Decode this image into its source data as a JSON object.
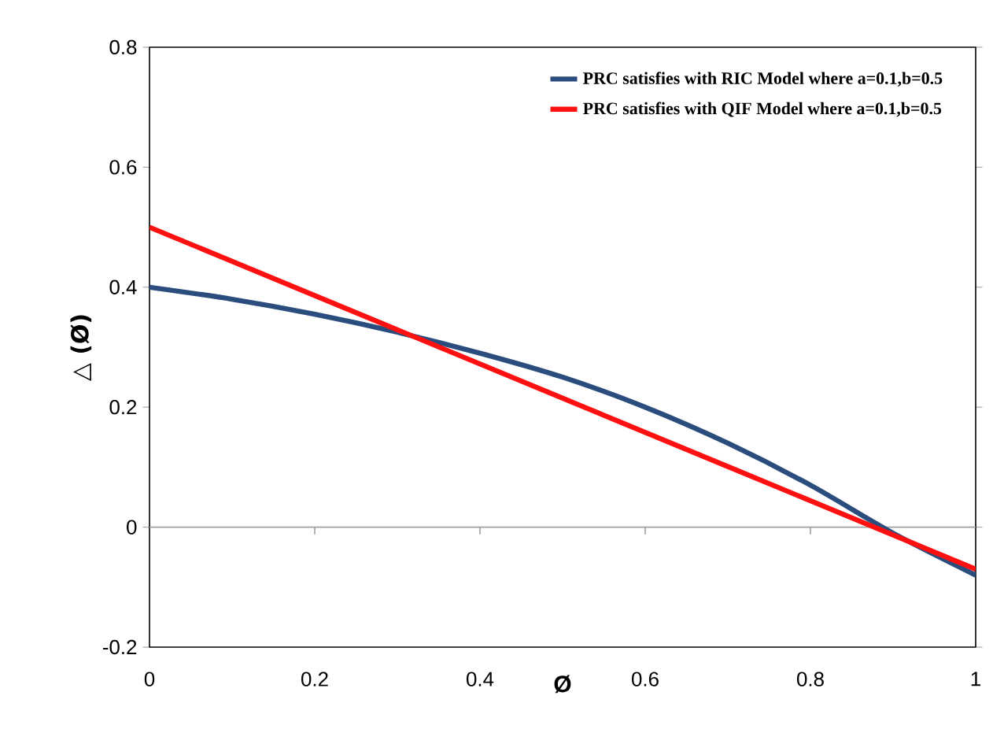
{
  "chart_data": {
    "type": "line",
    "xlabel": "Ø",
    "ylabel": "△ (Ø)",
    "xlim": [
      0,
      1
    ],
    "ylim": [
      -0.2,
      0.8
    ],
    "xticks": [
      0,
      0.2,
      0.4,
      0.6,
      0.8,
      1
    ],
    "yticks": [
      -0.2,
      0,
      0.2,
      0.4,
      0.6,
      0.8
    ],
    "legend": "top right",
    "grid": false,
    "marker": "none",
    "line_style": "solid",
    "ref_lines": [
      {
        "axis": "y",
        "value": 0,
        "color": "#a0a0a0"
      }
    ],
    "series": [
      {
        "name": "PRC satisfies with RIC Model where  a=0.1,b=0.5",
        "color": "#2a4d7e",
        "x": [
          0,
          0.1,
          0.2,
          0.3,
          0.4,
          0.5,
          0.6,
          0.7,
          0.8,
          0.9,
          1
        ],
        "values": [
          0.4,
          0.38,
          0.355,
          0.325,
          0.29,
          0.25,
          0.2,
          0.14,
          0.07,
          -0.01,
          -0.08
        ]
      },
      {
        "name": "PRC satisfies with QIF Model where a=0.1,b=0.5",
        "color": "#ff1010",
        "x": [
          0,
          0.5,
          1
        ],
        "values": [
          0.5,
          0.215,
          -0.07
        ]
      }
    ]
  }
}
